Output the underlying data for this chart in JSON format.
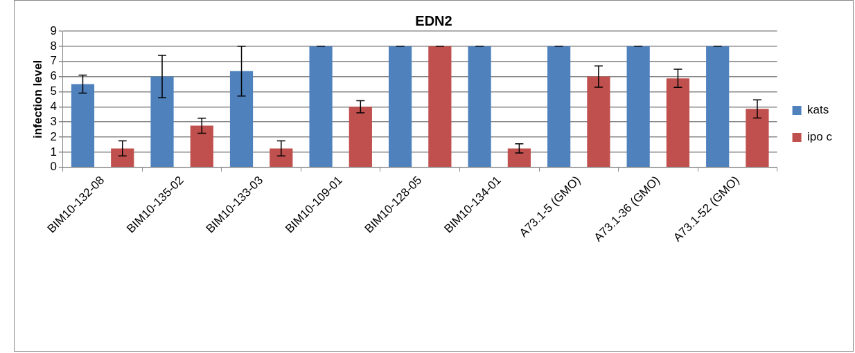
{
  "chart_data": {
    "type": "bar",
    "title": "EDN2",
    "ylabel": "infection level",
    "categories": [
      "BIM10-132-08",
      "BIM10-135-02",
      "BIM10-133-03",
      "BIM10-109-01",
      "BIM10-128-05",
      "BIM10-134-01",
      "A73.1-5 (GMO)",
      "A73.1-36 (GMO)",
      "A73.1-52 (GMO)"
    ],
    "series": [
      {
        "name": "kats",
        "color": "#4f81bd",
        "values": [
          5.5,
          6.0,
          6.36,
          8,
          8,
          8,
          8,
          8,
          8
        ],
        "errors": [
          0.6,
          1.4,
          1.65,
          0,
          0,
          0,
          0,
          0,
          0
        ]
      },
      {
        "name": "ipo c",
        "color": "#c0504d",
        "values": [
          1.25,
          2.75,
          1.25,
          4.0,
          8,
          1.25,
          6.0,
          5.88,
          3.86
        ],
        "errors": [
          0.5,
          0.5,
          0.5,
          0.4,
          0,
          0.3,
          0.7,
          0.6,
          0.6
        ]
      }
    ],
    "ylim": [
      0,
      9
    ],
    "yticks": [
      0,
      1,
      2,
      3,
      4,
      5,
      6,
      7,
      8,
      9
    ],
    "grid": "y",
    "legend": "right"
  }
}
